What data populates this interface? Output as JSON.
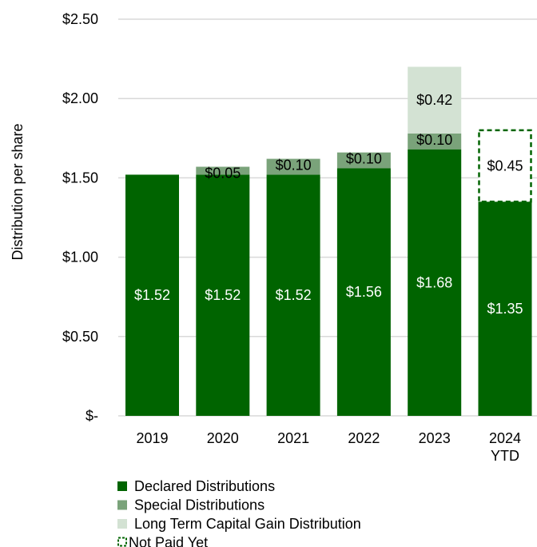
{
  "chart_data": {
    "type": "bar",
    "stacked": true,
    "categories": [
      "2019",
      "2020",
      "2021",
      "2022",
      "2023",
      "2024\nYTD"
    ],
    "ylabel": "Distribution per share",
    "ylim": [
      0,
      2.5
    ],
    "yticks": [
      0,
      0.5,
      1.0,
      1.5,
      2.0,
      2.5
    ],
    "ytick_labels": [
      "$-",
      "$0.50",
      "$1.00",
      "$1.50",
      "$2.00",
      "$2.50"
    ],
    "grid": true,
    "legend_position": "bottom",
    "series": [
      {
        "name": "Declared Distributions",
        "color": "#006400",
        "style": "solid",
        "values": [
          1.52,
          1.52,
          1.52,
          1.56,
          1.68,
          1.35
        ],
        "labels": [
          "$1.52",
          "$1.52",
          "$1.52",
          "$1.56",
          "$1.68",
          "$1.35"
        ],
        "label_color": "#ffffff"
      },
      {
        "name": "Special Distributions",
        "color": "#7aa37a",
        "style": "solid",
        "values": [
          0,
          0.05,
          0.1,
          0.1,
          0.1,
          0
        ],
        "labels": [
          "",
          "$0.05",
          "$0.10",
          "$0.10",
          "$0.10",
          ""
        ],
        "label_color": "#000000"
      },
      {
        "name": "Long Term Capital Gain Distribution",
        "color": "#d3e2d3",
        "style": "solid",
        "values": [
          0,
          0,
          0,
          0,
          0.42,
          0
        ],
        "labels": [
          "",
          "",
          "",
          "",
          "$0.42",
          ""
        ],
        "label_color": "#000000"
      },
      {
        "name": "Not Paid Yet",
        "color": "#006400",
        "style": "dashed",
        "values": [
          0,
          0,
          0,
          0,
          0,
          0.45
        ],
        "labels": [
          "",
          "",
          "",
          "",
          "",
          "$0.45"
        ],
        "label_color": "#000000"
      }
    ]
  }
}
